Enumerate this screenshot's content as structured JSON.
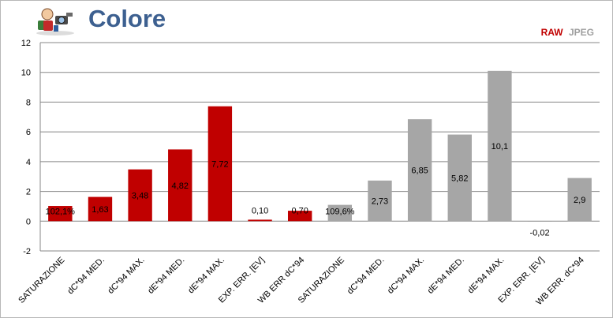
{
  "header": {
    "title": "Colore",
    "logo_icon": "mascot-photographer-icon"
  },
  "legend": {
    "raw_label": "RAW",
    "jpeg_label": "JPEG"
  },
  "colors": {
    "raw": "#c00000",
    "jpeg": "#a6a6a6",
    "title": "#3d6090",
    "grid": "#878787"
  },
  "chart_data": {
    "type": "bar",
    "title": "Colore",
    "xlabel": "",
    "ylabel": "",
    "ylim": [
      -2,
      12
    ],
    "yticks": [
      -2,
      0,
      2,
      4,
      6,
      8,
      10,
      12
    ],
    "grid": true,
    "legend_position": "top-right",
    "categories": [
      "SATURAZIONE",
      "dC*94 MED.",
      "dC*94 MAX.",
      "dE*94 MED.",
      "dE*94 MAX.",
      "EXP. ERR. [EV]",
      "WB ERR dC*94",
      "SATURAZIONE",
      "dC*94 MED.",
      "dC*94 MAX.",
      "dE*94 MED.",
      "dE*94 MAX.",
      "EXP. ERR. [EV]",
      "WB ERR. dC*94"
    ],
    "values": [
      1.021,
      1.63,
      3.48,
      4.82,
      7.72,
      0.1,
      0.7,
      1.096,
      2.73,
      6.85,
      5.82,
      10.1,
      -0.02,
      2.9
    ],
    "data_labels": [
      "102,1%",
      "1,63",
      "3,48",
      "4,82",
      "7,72",
      "0,10",
      "0,70",
      "109,6%",
      "2,73",
      "6,85",
      "5,82",
      "10,1",
      "-0,02",
      "2,9"
    ],
    "series_of_bar": [
      "RAW",
      "RAW",
      "RAW",
      "RAW",
      "RAW",
      "RAW",
      "RAW",
      "JPEG",
      "JPEG",
      "JPEG",
      "JPEG",
      "JPEG",
      "JPEG",
      "JPEG"
    ]
  }
}
